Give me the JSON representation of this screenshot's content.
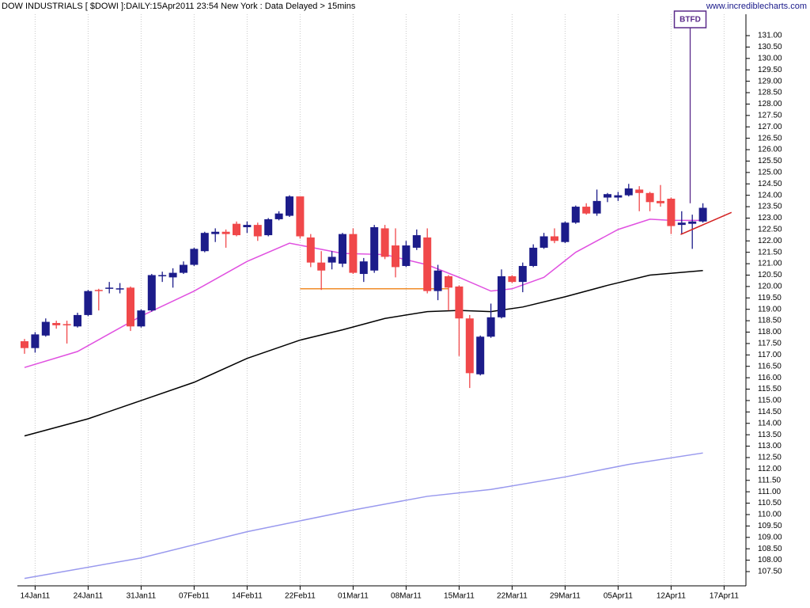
{
  "chart_data": {
    "type": "candlestick",
    "title": "DOW INDUSTRIALS [ $DOWI ]:DAILY:15Apr2011 23:54 New York : Data Delayed > 15mins",
    "source": "www.incrediblecharts.com",
    "categories": [
      null,
      "14Jan11",
      null,
      null,
      null,
      null,
      "24Jan11",
      null,
      null,
      null,
      null,
      "31Jan11",
      null,
      null,
      null,
      null,
      "07Feb11",
      null,
      null,
      null,
      null,
      "14Feb11",
      null,
      null,
      null,
      null,
      "22Feb11",
      null,
      null,
      null,
      null,
      "01Mar11",
      null,
      null,
      null,
      null,
      "08Mar11",
      null,
      null,
      null,
      null,
      "15Mar11",
      null,
      null,
      null,
      null,
      "22Mar11",
      null,
      null,
      null,
      null,
      "29Mar11",
      null,
      null,
      null,
      null,
      "05Apr11",
      null,
      null,
      null,
      null,
      "12Apr11",
      null,
      null,
      null,
      null,
      "17Apr11"
    ],
    "open": [
      117.6,
      117.3,
      117.85,
      118.4,
      118.35,
      118.25,
      118.75,
      119.85,
      119.9,
      119.88,
      119.95,
      118.25,
      118.95,
      120.45,
      120.4,
      120.6,
      120.95,
      121.55,
      122.3,
      122.4,
      122.75,
      122.6,
      122.7,
      122.25,
      122.95,
      123.1,
      123.95,
      122.15,
      121.05,
      121.05,
      121.0,
      122.3,
      120.55,
      120.7,
      122.55,
      121.8,
      120.9,
      121.7,
      122.15,
      119.8,
      120.45,
      120.0,
      118.6,
      116.15,
      117.8,
      118.65,
      120.45,
      120.2,
      120.9,
      121.7,
      122.2,
      121.95,
      122.8,
      123.5,
      123.2,
      123.9,
      123.9,
      124.0,
      124.25,
      124.1,
      123.75,
      123.85,
      122.7,
      122.75,
      122.85,
      null,
      null
    ],
    "high": [
      117.7,
      118.0,
      118.6,
      118.5,
      118.5,
      118.85,
      119.85,
      119.9,
      120.2,
      120.15,
      120.0,
      119.0,
      120.55,
      120.65,
      120.8,
      121.1,
      121.7,
      122.4,
      122.55,
      122.5,
      122.85,
      122.85,
      122.8,
      123.0,
      123.3,
      124.0,
      123.95,
      122.3,
      121.55,
      121.55,
      122.35,
      122.55,
      121.25,
      122.7,
      122.7,
      122.55,
      122.0,
      122.5,
      122.55,
      120.95,
      120.5,
      120.05,
      118.75,
      117.85,
      119.25,
      120.75,
      120.5,
      121.05,
      121.85,
      122.35,
      122.55,
      122.85,
      123.55,
      123.65,
      124.25,
      124.1,
      124.15,
      124.5,
      124.4,
      124.15,
      124.45,
      123.9,
      123.3,
      123.15,
      123.65,
      null,
      null
    ],
    "low": [
      117.05,
      117.1,
      117.8,
      118.15,
      117.5,
      118.2,
      118.7,
      118.95,
      119.7,
      119.7,
      118.05,
      118.2,
      118.9,
      120.2,
      119.95,
      120.55,
      120.9,
      121.5,
      121.95,
      121.7,
      122.2,
      122.35,
      122.0,
      122.2,
      122.9,
      123.05,
      122.1,
      120.85,
      119.85,
      120.75,
      120.85,
      120.55,
      120.2,
      120.6,
      121.2,
      120.4,
      120.85,
      121.6,
      119.7,
      119.4,
      118.95,
      116.95,
      115.55,
      116.1,
      117.75,
      118.6,
      120.15,
      119.75,
      120.85,
      121.65,
      121.9,
      121.9,
      122.75,
      123.15,
      123.1,
      123.7,
      123.75,
      123.95,
      123.3,
      123.3,
      123.5,
      122.3,
      122.3,
      121.65,
      122.8,
      null,
      null
    ],
    "close": [
      117.3,
      117.9,
      118.45,
      118.3,
      118.3,
      118.75,
      119.8,
      119.8,
      119.95,
      119.92,
      118.25,
      118.95,
      120.5,
      120.5,
      120.6,
      120.95,
      121.65,
      122.35,
      122.4,
      122.3,
      122.25,
      122.7,
      122.2,
      122.95,
      123.2,
      123.95,
      122.2,
      121.05,
      120.7,
      121.3,
      122.3,
      120.6,
      121.1,
      122.6,
      121.3,
      120.85,
      121.8,
      122.25,
      119.8,
      120.7,
      119.95,
      118.6,
      116.2,
      117.8,
      118.65,
      120.45,
      120.2,
      120.9,
      121.7,
      122.2,
      122.0,
      122.8,
      123.5,
      123.2,
      123.75,
      124.05,
      124.0,
      124.3,
      124.1,
      123.7,
      123.65,
      122.65,
      122.8,
      122.85,
      123.45,
      null,
      null
    ],
    "up_color": "#1c1c8a",
    "down_color": "#f0484a",
    "moving_averages": [
      {
        "color": "#e050e0",
        "x": [
          0,
          5,
          11,
          16,
          21,
          25,
          30,
          34,
          38,
          41,
          44,
          46,
          49,
          52,
          56,
          59,
          61,
          64
        ],
        "values": [
          116.45,
          117.15,
          118.7,
          119.8,
          121.1,
          121.9,
          121.45,
          121.4,
          120.95,
          120.4,
          119.8,
          119.9,
          120.4,
          121.5,
          122.5,
          122.95,
          122.9,
          122.9
        ]
      },
      {
        "color": "#000000",
        "x": [
          0,
          6,
          11,
          16,
          21,
          26,
          30,
          34,
          38,
          41,
          44,
          47,
          51,
          55,
          59,
          64
        ],
        "values": [
          113.45,
          114.2,
          115.0,
          115.8,
          116.85,
          117.65,
          118.1,
          118.6,
          118.9,
          118.95,
          118.9,
          119.1,
          119.55,
          120.05,
          120.5,
          120.7
        ]
      },
      {
        "color": "#9999ee",
        "x": [
          0,
          11,
          21,
          31,
          38,
          44,
          51,
          57,
          64
        ],
        "values": [
          107.2,
          108.1,
          109.25,
          110.2,
          110.8,
          111.1,
          111.65,
          112.2,
          112.7
        ]
      }
    ],
    "support_line": {
      "color": "#f08c28",
      "x": [
        26,
        40
      ],
      "values": [
        119.9,
        119.9
      ]
    },
    "trend_line": {
      "color": "#d42020",
      "x": [
        61.9,
        66.7
      ],
      "values": [
        122.28,
        123.25
      ]
    },
    "callout": {
      "text": "BTFD",
      "color": "#5a2a8a",
      "x": 62.8,
      "value": 123.65
    },
    "ylim": [
      107.5,
      131.0
    ],
    "yticks": [
      {
        "value": 107.5,
        "label": "107.50"
      },
      {
        "value": 108,
        "label": "108.00"
      },
      {
        "value": 108.5,
        "label": "108.50"
      },
      {
        "value": 109,
        "label": "109.00"
      },
      {
        "value": 109.5,
        "label": "109.50"
      },
      {
        "value": 110,
        "label": "110.00"
      },
      {
        "value": 110.5,
        "label": "110.50"
      },
      {
        "value": 111,
        "label": "111.00"
      },
      {
        "value": 111.5,
        "label": "111.50"
      },
      {
        "value": 112,
        "label": "112.00"
      },
      {
        "value": 112.5,
        "label": "112.50"
      },
      {
        "value": 113,
        "label": "113.00"
      },
      {
        "value": 113.5,
        "label": "113.50"
      },
      {
        "value": 114,
        "label": "114.00"
      },
      {
        "value": 114.5,
        "label": "114.50"
      },
      {
        "value": 115,
        "label": "115.00"
      },
      {
        "value": 115.5,
        "label": "115.50"
      },
      {
        "value": 116,
        "label": "116.00"
      },
      {
        "value": 116.5,
        "label": "116.50"
      },
      {
        "value": 117,
        "label": "117.00"
      },
      {
        "value": 117.5,
        "label": "117.50"
      },
      {
        "value": 118,
        "label": "118.00"
      },
      {
        "value": 118.5,
        "label": "118.50"
      },
      {
        "value": 119,
        "label": "119.00"
      },
      {
        "value": 119.5,
        "label": "119.50"
      },
      {
        "value": 120,
        "label": "120.00"
      },
      {
        "value": 120.5,
        "label": "120.50"
      },
      {
        "value": 121,
        "label": "121.00"
      },
      {
        "value": 121.5,
        "label": "121.50"
      },
      {
        "value": 122,
        "label": "122.00"
      },
      {
        "value": 122.5,
        "label": "122.50"
      },
      {
        "value": 123,
        "label": "123.00"
      },
      {
        "value": 123.5,
        "label": "123.50"
      },
      {
        "value": 124,
        "label": "124.00"
      },
      {
        "value": 124.5,
        "label": "124.50"
      },
      {
        "value": 125,
        "label": "125.00"
      },
      {
        "value": 125.5,
        "label": "125.50"
      },
      {
        "value": 126,
        "label": "126.00"
      },
      {
        "value": 126.5,
        "label": "126.50"
      },
      {
        "value": 127,
        "label": "127.00"
      },
      {
        "value": 127.5,
        "label": "127.50"
      },
      {
        "value": 128,
        "label": "128.00"
      },
      {
        "value": 128.5,
        "label": "128.50"
      },
      {
        "value": 129,
        "label": "129.00"
      },
      {
        "value": 129.5,
        "label": "129.50"
      },
      {
        "value": 130,
        "label": "130.00"
      },
      {
        "value": 130.5,
        "label": "130.50"
      },
      {
        "value": 131,
        "label": "131.00"
      }
    ],
    "grid": true
  }
}
